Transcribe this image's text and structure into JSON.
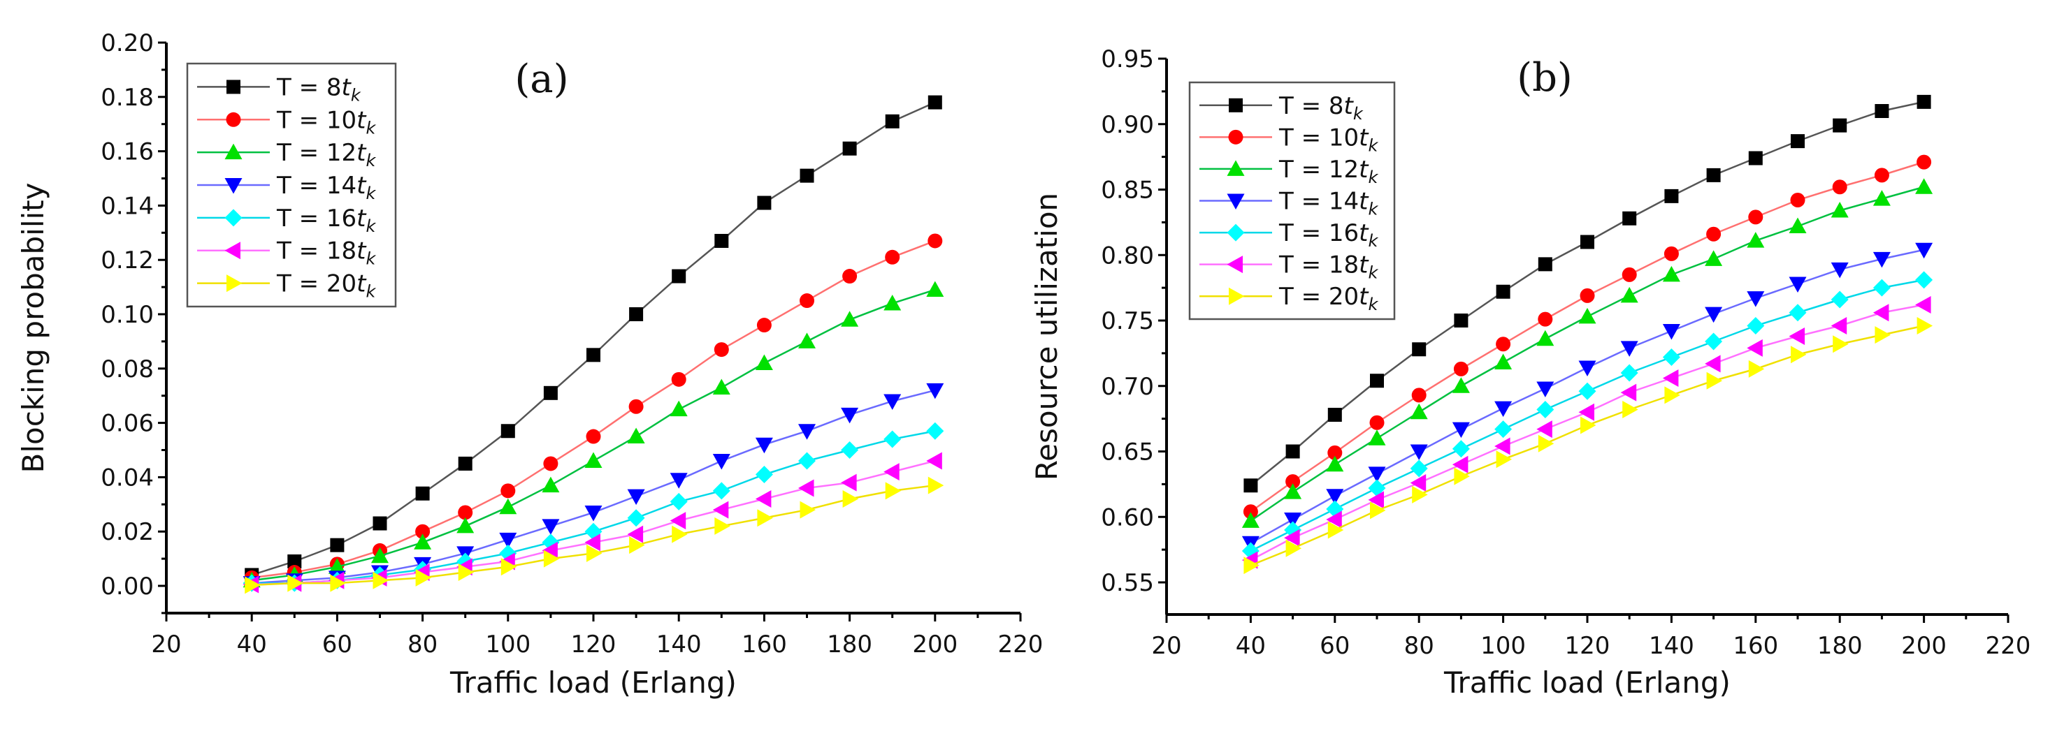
{
  "chart_data": [
    {
      "type": "line",
      "title": "(a)",
      "xlabel": "Traffic load (Erlang)",
      "ylabel": "Blocking probability",
      "xlim": [
        20,
        220
      ],
      "ylim": [
        -0.01,
        0.2
      ],
      "xticks": [
        "20",
        "40",
        "60",
        "80",
        "100",
        "120",
        "140",
        "160",
        "180",
        "200",
        "220"
      ],
      "yticks": [
        "0.00",
        "0.02",
        "0.04",
        "0.06",
        "0.08",
        "0.10",
        "0.12",
        "0.14",
        "0.16",
        "0.18",
        "0.20"
      ],
      "legend_position": "top-left",
      "x": [
        40,
        50,
        60,
        70,
        80,
        90,
        100,
        110,
        120,
        130,
        140,
        150,
        160,
        170,
        180,
        190,
        200
      ],
      "series": [
        {
          "name": "T = 8",
          "sub": "t",
          "subk": "k",
          "color": "#000000",
          "line": "#555555",
          "marker": "square",
          "values": [
            0.004,
            0.009,
            0.015,
            0.023,
            0.034,
            0.045,
            0.057,
            0.071,
            0.085,
            0.1,
            0.114,
            0.127,
            0.141,
            0.151,
            0.161,
            0.171,
            0.178
          ]
        },
        {
          "name": "T = 10",
          "sub": "t",
          "subk": "k",
          "color": "#ff0000",
          "line": "#ff7070",
          "marker": "circle",
          "values": [
            0.003,
            0.005,
            0.008,
            0.013,
            0.02,
            0.027,
            0.035,
            0.045,
            0.055,
            0.066,
            0.076,
            0.087,
            0.096,
            0.105,
            0.114,
            0.121,
            0.127
          ]
        },
        {
          "name": "T = 12",
          "sub": "t",
          "subk": "k",
          "color": "#00e000",
          "line": "#00c040",
          "marker": "triangle-up",
          "values": [
            0.002,
            0.004,
            0.007,
            0.011,
            0.016,
            0.022,
            0.029,
            0.037,
            0.046,
            0.055,
            0.065,
            0.073,
            0.082,
            0.09,
            0.098,
            0.104,
            0.109
          ]
        },
        {
          "name": "T = 14",
          "sub": "t",
          "subk": "k",
          "color": "#0000ff",
          "line": "#6a6aff",
          "marker": "triangle-down",
          "values": [
            0.001,
            0.002,
            0.003,
            0.005,
            0.008,
            0.012,
            0.017,
            0.022,
            0.027,
            0.033,
            0.039,
            0.046,
            0.052,
            0.057,
            0.063,
            0.068,
            0.072
          ]
        },
        {
          "name": "T = 16",
          "sub": "t",
          "subk": "k",
          "color": "#00ffff",
          "line": "#00d8e8",
          "marker": "diamond",
          "values": [
            0.001,
            0.001,
            0.002,
            0.004,
            0.006,
            0.009,
            0.012,
            0.016,
            0.02,
            0.025,
            0.031,
            0.035,
            0.041,
            0.046,
            0.05,
            0.054,
            0.057
          ]
        },
        {
          "name": "T = 18",
          "sub": "t",
          "subk": "k",
          "color": "#ff00ff",
          "line": "#ff70ff",
          "marker": "triangle-left",
          "values": [
            0.0005,
            0.001,
            0.002,
            0.003,
            0.005,
            0.007,
            0.009,
            0.013,
            0.016,
            0.019,
            0.024,
            0.028,
            0.032,
            0.036,
            0.038,
            0.042,
            0.046
          ]
        },
        {
          "name": "T = 20",
          "sub": "t",
          "subk": "k",
          "color": "#ffff00",
          "line": "#f0e000",
          "marker": "triangle-right",
          "values": [
            0.0003,
            0.001,
            0.001,
            0.002,
            0.003,
            0.005,
            0.007,
            0.01,
            0.012,
            0.015,
            0.019,
            0.022,
            0.025,
            0.028,
            0.032,
            0.035,
            0.037
          ]
        }
      ]
    },
    {
      "type": "line",
      "title": "(b)",
      "xlabel": "Traffic load (Erlang)",
      "ylabel": "Resource utilization",
      "xlim": [
        20,
        220
      ],
      "ylim": [
        0.525,
        0.95
      ],
      "xticks": [
        "20",
        "40",
        "60",
        "80",
        "100",
        "120",
        "140",
        "160",
        "180",
        "200",
        "220"
      ],
      "yticks": [
        "0.55",
        "0.60",
        "0.65",
        "0.70",
        "0.75",
        "0.80",
        "0.85",
        "0.90",
        "0.95"
      ],
      "legend_position": "top-left",
      "x": [
        40,
        50,
        60,
        70,
        80,
        90,
        100,
        110,
        120,
        130,
        140,
        150,
        160,
        170,
        180,
        190,
        200
      ],
      "series": [
        {
          "name": "T = 8",
          "sub": "t",
          "subk": "k",
          "color": "#000000",
          "line": "#555555",
          "marker": "square",
          "values": [
            0.624,
            0.65,
            0.678,
            0.704,
            0.728,
            0.75,
            0.772,
            0.793,
            0.81,
            0.828,
            0.845,
            0.861,
            0.874,
            0.887,
            0.899,
            0.91,
            0.917
          ]
        },
        {
          "name": "T = 10",
          "sub": "t",
          "subk": "k",
          "color": "#ff0000",
          "line": "#ff7070",
          "marker": "circle",
          "values": [
            0.604,
            0.627,
            0.649,
            0.672,
            0.693,
            0.713,
            0.732,
            0.751,
            0.769,
            0.785,
            0.801,
            0.816,
            0.829,
            0.842,
            0.852,
            0.861,
            0.871
          ]
        },
        {
          "name": "T = 12",
          "sub": "t",
          "subk": "k",
          "color": "#00e000",
          "line": "#00c040",
          "marker": "triangle-up",
          "values": [
            0.597,
            0.619,
            0.64,
            0.66,
            0.68,
            0.7,
            0.718,
            0.736,
            0.753,
            0.769,
            0.785,
            0.797,
            0.811,
            0.822,
            0.834,
            0.843,
            0.852
          ]
        },
        {
          "name": "T = 14",
          "sub": "t",
          "subk": "k",
          "color": "#0000ff",
          "line": "#6a6aff",
          "marker": "triangle-down",
          "values": [
            0.58,
            0.598,
            0.616,
            0.633,
            0.65,
            0.667,
            0.683,
            0.698,
            0.714,
            0.729,
            0.742,
            0.755,
            0.767,
            0.778,
            0.789,
            0.797,
            0.804
          ]
        },
        {
          "name": "T = 16",
          "sub": "t",
          "subk": "k",
          "color": "#00ffff",
          "line": "#00d8e8",
          "marker": "diamond",
          "values": [
            0.574,
            0.59,
            0.606,
            0.622,
            0.637,
            0.652,
            0.667,
            0.682,
            0.696,
            0.71,
            0.722,
            0.734,
            0.746,
            0.756,
            0.766,
            0.775,
            0.781
          ]
        },
        {
          "name": "T = 18",
          "sub": "t",
          "subk": "k",
          "color": "#ff00ff",
          "line": "#ff70ff",
          "marker": "triangle-left",
          "values": [
            0.567,
            0.584,
            0.598,
            0.613,
            0.626,
            0.64,
            0.654,
            0.667,
            0.68,
            0.695,
            0.706,
            0.717,
            0.729,
            0.738,
            0.746,
            0.756,
            0.762
          ]
        },
        {
          "name": "T = 20",
          "sub": "t",
          "subk": "k",
          "color": "#ffff00",
          "line": "#f0e000",
          "marker": "triangle-right",
          "values": [
            0.563,
            0.576,
            0.59,
            0.605,
            0.617,
            0.631,
            0.644,
            0.656,
            0.67,
            0.682,
            0.693,
            0.704,
            0.713,
            0.724,
            0.732,
            0.739,
            0.746
          ]
        }
      ]
    }
  ]
}
